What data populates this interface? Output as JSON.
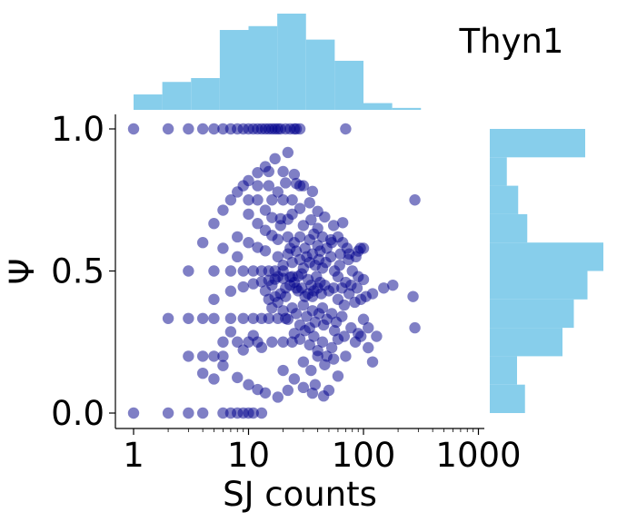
{
  "chart_data": {
    "type": "scatter",
    "title": "Thyn1",
    "xlabel": "SJ counts",
    "ylabel": "Ψ",
    "x_scale": "log",
    "xlim": [
      0.8,
      1100
    ],
    "ylim": [
      -0.05,
      1.05
    ],
    "x_ticks": [
      1,
      10,
      100,
      1000
    ],
    "x_tick_labels": [
      "1",
      "10",
      "100",
      "1000"
    ],
    "y_ticks": [
      0.0,
      0.5,
      1.0
    ],
    "y_tick_labels": [
      "0.0",
      "0.5",
      "1.0"
    ],
    "grid": false,
    "colors": {
      "points": "#00008b",
      "histogram": "#87ceeb"
    },
    "point_alpha": 0.5,
    "series": [
      {
        "points": [
          [
            1,
            0
          ],
          [
            2,
            0
          ],
          [
            3,
            0
          ],
          [
            4,
            0
          ],
          [
            6,
            0
          ],
          [
            7,
            0
          ],
          [
            8,
            0
          ],
          [
            9,
            0
          ],
          [
            10,
            0
          ],
          [
            11,
            0
          ],
          [
            13,
            0
          ],
          [
            1,
            1
          ],
          [
            2,
            1
          ],
          [
            3,
            1
          ],
          [
            4,
            1
          ],
          [
            5,
            1
          ],
          [
            6,
            1
          ],
          [
            7,
            1
          ],
          [
            8,
            1
          ],
          [
            9,
            1
          ],
          [
            10,
            1
          ],
          [
            11,
            1
          ],
          [
            12,
            1
          ],
          [
            13,
            1
          ],
          [
            14,
            1
          ],
          [
            15,
            1
          ],
          [
            16,
            1
          ],
          [
            17,
            1
          ],
          [
            18,
            1
          ],
          [
            19,
            1
          ],
          [
            21,
            1
          ],
          [
            23,
            1
          ],
          [
            25,
            1
          ],
          [
            26,
            1
          ],
          [
            28,
            1
          ],
          [
            70,
            1
          ],
          [
            4,
            0.6
          ],
          [
            5,
            0.667
          ],
          [
            6,
            0.714
          ],
          [
            7,
            0.75
          ],
          [
            8,
            0.778
          ],
          [
            9,
            0.8
          ],
          [
            10,
            0.818
          ],
          [
            12,
            0.846
          ],
          [
            14,
            0.867
          ],
          [
            17,
            0.895
          ],
          [
            22,
            0.917
          ],
          [
            5,
            0.4
          ],
          [
            7,
            0.429
          ],
          [
            9,
            0.444
          ],
          [
            11,
            0.455
          ],
          [
            13,
            0.462
          ],
          [
            15,
            0.467
          ],
          [
            17,
            0.471
          ],
          [
            20,
            0.474
          ],
          [
            23,
            0.478
          ],
          [
            27,
            0.481
          ],
          [
            5,
            0.5
          ],
          [
            7,
            0.5
          ],
          [
            9,
            0.5
          ],
          [
            11,
            0.5
          ],
          [
            13,
            0.5
          ],
          [
            15,
            0.5
          ],
          [
            17,
            0.5
          ],
          [
            20,
            0.5
          ],
          [
            5,
            0.333
          ],
          [
            7,
            0.333
          ],
          [
            9,
            0.333
          ],
          [
            11,
            0.333
          ],
          [
            13,
            0.333
          ],
          [
            15,
            0.333
          ],
          [
            18,
            0.333
          ],
          [
            21,
            0.333
          ],
          [
            6,
            0.167
          ],
          [
            8,
            0.125
          ],
          [
            10,
            0.1
          ],
          [
            12,
            0.083
          ],
          [
            14,
            0.071
          ],
          [
            18,
            0.056
          ],
          [
            6,
            0.25
          ],
          [
            8,
            0.25
          ],
          [
            10,
            0.25
          ],
          [
            12,
            0.25
          ],
          [
            16,
            0.25
          ],
          [
            20,
            0.25
          ],
          [
            24,
            0.25
          ],
          [
            4,
            0.2
          ],
          [
            5,
            0.2
          ],
          [
            6,
            0.2
          ],
          [
            7,
            0.286
          ],
          [
            9,
            0.222
          ],
          [
            11,
            0.273
          ],
          [
            13,
            0.231
          ],
          [
            6,
            0.58
          ],
          [
            8,
            0.55
          ],
          [
            10,
            0.6
          ],
          [
            12,
            0.583
          ],
          [
            14,
            0.571
          ],
          [
            16,
            0.625
          ],
          [
            18,
            0.611
          ],
          [
            8,
            0.62
          ],
          [
            10,
            0.7
          ],
          [
            12,
            0.667
          ],
          [
            14,
            0.643
          ],
          [
            16,
            0.688
          ],
          [
            19,
            0.684
          ],
          [
            22,
            0.682
          ],
          [
            10,
            0.75
          ],
          [
            12,
            0.75
          ],
          [
            14,
            0.714
          ],
          [
            16,
            0.75
          ],
          [
            20,
            0.75
          ],
          [
            24,
            0.75
          ],
          [
            12,
            0.8
          ],
          [
            15,
            0.8
          ],
          [
            18,
            0.778
          ],
          [
            21,
            0.81
          ],
          [
            26,
            0.808
          ],
          [
            30,
            0.8
          ],
          [
            15,
            0.85
          ],
          [
            20,
            0.85
          ],
          [
            25,
            0.84
          ],
          [
            3,
            0.2
          ],
          [
            4,
            0.14
          ],
          [
            5,
            0.12
          ],
          [
            2,
            0.333
          ],
          [
            3,
            0.5
          ],
          [
            4,
            0.333
          ],
          [
            3,
            0.333
          ],
          [
            15,
            0.4
          ],
          [
            17,
            0.41
          ],
          [
            19,
            0.42
          ],
          [
            21,
            0.44
          ],
          [
            23,
            0.45
          ],
          [
            25,
            0.46
          ],
          [
            27,
            0.43
          ],
          [
            29,
            0.44
          ],
          [
            31,
            0.41
          ],
          [
            33,
            0.42
          ],
          [
            35,
            0.45
          ],
          [
            37,
            0.43
          ],
          [
            40,
            0.44
          ],
          [
            43,
            0.42
          ],
          [
            46,
            0.45
          ],
          [
            50,
            0.43
          ],
          [
            18,
            0.55
          ],
          [
            20,
            0.52
          ],
          [
            22,
            0.56
          ],
          [
            24,
            0.53
          ],
          [
            26,
            0.57
          ],
          [
            28,
            0.54
          ],
          [
            30,
            0.51
          ],
          [
            32,
            0.55
          ],
          [
            34,
            0.53
          ],
          [
            36,
            0.56
          ],
          [
            38,
            0.52
          ],
          [
            41,
            0.54
          ],
          [
            44,
            0.51
          ],
          [
            47,
            0.53
          ],
          [
            52,
            0.55
          ],
          [
            56,
            0.5
          ],
          [
            20,
            0.36
          ],
          [
            22,
            0.33
          ],
          [
            24,
            0.37
          ],
          [
            26,
            0.35
          ],
          [
            28,
            0.31
          ],
          [
            30,
            0.38
          ],
          [
            32,
            0.34
          ],
          [
            34,
            0.3
          ],
          [
            36,
            0.36
          ],
          [
            38,
            0.32
          ],
          [
            41,
            0.35
          ],
          [
            44,
            0.37
          ],
          [
            48,
            0.33
          ],
          [
            53,
            0.35
          ],
          [
            58,
            0.32
          ],
          [
            25,
            0.6
          ],
          [
            28,
            0.62
          ],
          [
            31,
            0.58
          ],
          [
            34,
            0.61
          ],
          [
            37,
            0.63
          ],
          [
            40,
            0.59
          ],
          [
            44,
            0.62
          ],
          [
            48,
            0.58
          ],
          [
            53,
            0.6
          ],
          [
            60,
            0.62
          ],
          [
            66,
            0.6
          ],
          [
            72,
            0.58
          ],
          [
            25,
            0.28
          ],
          [
            28,
            0.26
          ],
          [
            31,
            0.29
          ],
          [
            34,
            0.24
          ],
          [
            37,
            0.27
          ],
          [
            40,
            0.22
          ],
          [
            44,
            0.25
          ],
          [
            48,
            0.2
          ],
          [
            53,
            0.23
          ],
          [
            60,
            0.26
          ],
          [
            68,
            0.27
          ],
          [
            30,
            0.66
          ],
          [
            35,
            0.68
          ],
          [
            40,
            0.65
          ],
          [
            46,
            0.69
          ],
          [
            55,
            0.66
          ],
          [
            66,
            0.67
          ],
          [
            30,
            0.18
          ],
          [
            35,
            0.15
          ],
          [
            40,
            0.2
          ],
          [
            46,
            0.17
          ],
          [
            55,
            0.19
          ],
          [
            20,
            0.15
          ],
          [
            22,
            0.08
          ],
          [
            25,
            0.12
          ],
          [
            30,
            0.09
          ],
          [
            36,
            0.07
          ],
          [
            45,
            0.06
          ],
          [
            24,
            0.7
          ],
          [
            28,
            0.72
          ],
          [
            34,
            0.74
          ],
          [
            40,
            0.71
          ],
          [
            28,
            0.8
          ],
          [
            36,
            0.78
          ],
          [
            60,
            0.4
          ],
          [
            68,
            0.38
          ],
          [
            75,
            0.42
          ],
          [
            84,
            0.39
          ],
          [
            95,
            0.4
          ],
          [
            105,
            0.41
          ],
          [
            60,
            0.48
          ],
          [
            70,
            0.46
          ],
          [
            80,
            0.5
          ],
          [
            90,
            0.48
          ],
          [
            100,
            0.47
          ],
          [
            55,
            0.44
          ],
          [
            65,
            0.44
          ],
          [
            78,
            0.45
          ],
          [
            88,
            0.44
          ],
          [
            62,
            0.52
          ],
          [
            74,
            0.54
          ],
          [
            86,
            0.55
          ],
          [
            94,
            0.58
          ],
          [
            65,
            0.34
          ],
          [
            78,
            0.3
          ],
          [
            90,
            0.28
          ],
          [
            100,
            0.33
          ],
          [
            110,
            0.3
          ],
          [
            120,
            0.42
          ],
          [
            70,
            0.2
          ],
          [
            85,
            0.25
          ],
          [
            95,
            0.27
          ],
          [
            110,
            0.23
          ],
          [
            75,
            0.56
          ],
          [
            90,
            0.57
          ],
          [
            100,
            0.58
          ],
          [
            130,
            0.27
          ],
          [
            150,
            0.44
          ],
          [
            180,
            0.45
          ],
          [
            270,
            0.41
          ],
          [
            280,
            0.75
          ],
          [
            280,
            0.3
          ],
          [
            38,
            0.1
          ],
          [
            50,
            0.08
          ],
          [
            60,
            0.13
          ],
          [
            120,
            0.18
          ],
          [
            42,
            0.57
          ],
          [
            52,
            0.61
          ],
          [
            63,
            0.56
          ],
          [
            45,
            0.31
          ],
          [
            56,
            0.29
          ],
          [
            16,
            0.45
          ],
          [
            18,
            0.48
          ],
          [
            14,
            0.43
          ],
          [
            16,
            0.37
          ],
          [
            18,
            0.39
          ],
          [
            22,
            0.62
          ],
          [
            19,
            0.66
          ],
          [
            23,
            0.58
          ],
          [
            21,
            0.41
          ],
          [
            24,
            0.48
          ],
          [
            26,
            0.44
          ],
          [
            29,
            0.49
          ],
          [
            33,
            0.47
          ],
          [
            36,
            0.41
          ],
          [
            39,
            0.48
          ],
          [
            42,
            0.46
          ]
        ]
      }
    ],
    "x_marginal": {
      "orientation": "vertical",
      "bin_edges_log10": [
        0,
        0.25,
        0.5,
        0.75,
        1,
        1.25,
        1.5,
        1.75,
        2,
        2.25,
        2.5
      ],
      "relative_heights": [
        0.16,
        0.29,
        0.33,
        0.83,
        0.87,
        1.0,
        0.73,
        0.51,
        0.07,
        0.02
      ]
    },
    "y_marginal": {
      "orientation": "horizontal",
      "bin_edges": [
        0,
        0.1,
        0.2,
        0.3,
        0.4,
        0.5,
        0.6,
        0.7,
        0.8,
        0.9,
        1.0
      ],
      "relative_widths": [
        0.31,
        0.24,
        0.64,
        0.74,
        0.86,
        1.0,
        0.33,
        0.25,
        0.15,
        0.84
      ]
    }
  }
}
